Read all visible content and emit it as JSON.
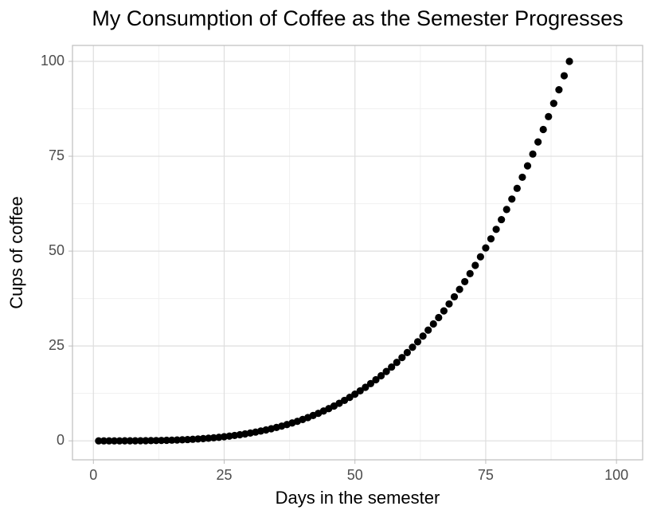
{
  "chart_data": {
    "type": "scatter",
    "title": "My Consumption of Coffee as the Semester Progresses",
    "x_label": "Days in the semester",
    "y_label": "Cups of coffee",
    "color": "#000000",
    "grid": true,
    "xlim": [
      -4,
      105
    ],
    "ylim": [
      -5,
      104.2
    ],
    "xticks": [
      0,
      25,
      50,
      75,
      100
    ],
    "yticks": [
      0,
      25,
      50,
      75,
      100
    ],
    "x_minor_ticks": [
      12.5,
      37.5,
      62.5,
      87.5
    ],
    "y_minor_ticks": [
      12.5,
      37.5,
      62.5,
      87.5
    ],
    "x": [
      1,
      2,
      3,
      4,
      5,
      6,
      7,
      8,
      9,
      10,
      11,
      12,
      13,
      14,
      15,
      16,
      17,
      18,
      19,
      20,
      21,
      22,
      23,
      24,
      25,
      26,
      27,
      28,
      29,
      30,
      31,
      32,
      33,
      34,
      35,
      36,
      37,
      38,
      39,
      40,
      41,
      42,
      43,
      44,
      45,
      46,
      47,
      48,
      49,
      50,
      51,
      52,
      53,
      54,
      55,
      56,
      57,
      58,
      59,
      60,
      61,
      62,
      63,
      64,
      65,
      66,
      67,
      68,
      69,
      70,
      71,
      72,
      73,
      74,
      75,
      76,
      77,
      78,
      79,
      80,
      81,
      82,
      83,
      84,
      85,
      86,
      87,
      88,
      89,
      90,
      91
    ],
    "values": [
      0,
      0,
      0,
      0,
      0,
      0.01,
      0.01,
      0.02,
      0.03,
      0.04,
      0.06,
      0.08,
      0.11,
      0.14,
      0.18,
      0.23,
      0.28,
      0.34,
      0.42,
      0.5,
      0.59,
      0.69,
      0.81,
      0.94,
      1.09,
      1.25,
      1.42,
      1.62,
      1.83,
      2.06,
      2.31,
      2.58,
      2.87,
      3.19,
      3.53,
      3.89,
      4.29,
      4.71,
      5.15,
      5.63,
      6.14,
      6.68,
      7.25,
      7.86,
      8.5,
      9.18,
      9.9,
      10.66,
      11.46,
      12.3,
      13.18,
      14.11,
      15.08,
      16.1,
      17.16,
      18.28,
      19.45,
      20.67,
      21.95,
      23.27,
      24.66,
      26.11,
      27.61,
      29.17,
      30.8,
      32.49,
      34.25,
      36.07,
      37.96,
      39.92,
      41.95,
      44.06,
      46.24,
      48.49,
      50.83,
      53.24,
      55.73,
      58.3,
      60.96,
      63.71,
      66.54,
      69.46,
      72.47,
      75.57,
      78.76,
      82.05,
      85.44,
      88.93,
      92.52,
      96.21,
      100
    ]
  }
}
